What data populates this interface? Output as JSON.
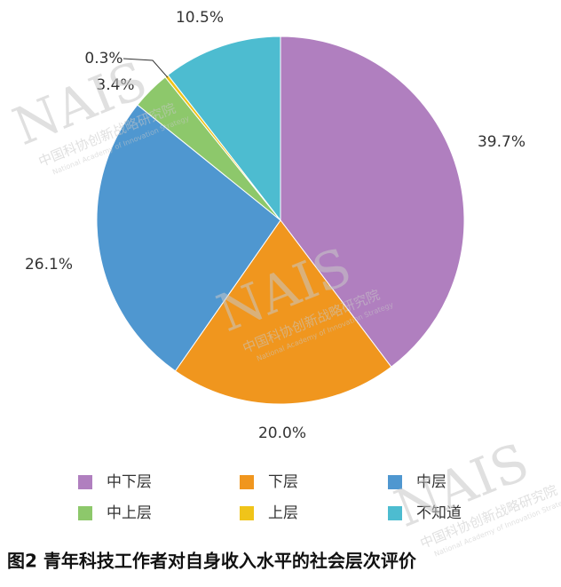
{
  "chart_data": {
    "type": "pie",
    "title": "图2 青年科技工作者对自身收入水平的社会层次评价",
    "categories": [
      "中下层",
      "下层",
      "中层",
      "中上层",
      "上层",
      "不知道"
    ],
    "values": [
      39.7,
      20.0,
      26.1,
      3.4,
      0.3,
      10.5
    ],
    "value_labels": [
      "39.7%",
      "20.0%",
      "26.1%",
      "3.4%",
      "0.3%",
      "10.5%"
    ],
    "colors": [
      "#b07fbf",
      "#f0961e",
      "#4f97d0",
      "#8dc86b",
      "#f0c419",
      "#4dbcd0"
    ]
  },
  "watermark": {
    "logo": "NAIS",
    "name_cn": "中国科协创新战略研究院",
    "name_en": "National Academy of Innovation Strategy"
  }
}
